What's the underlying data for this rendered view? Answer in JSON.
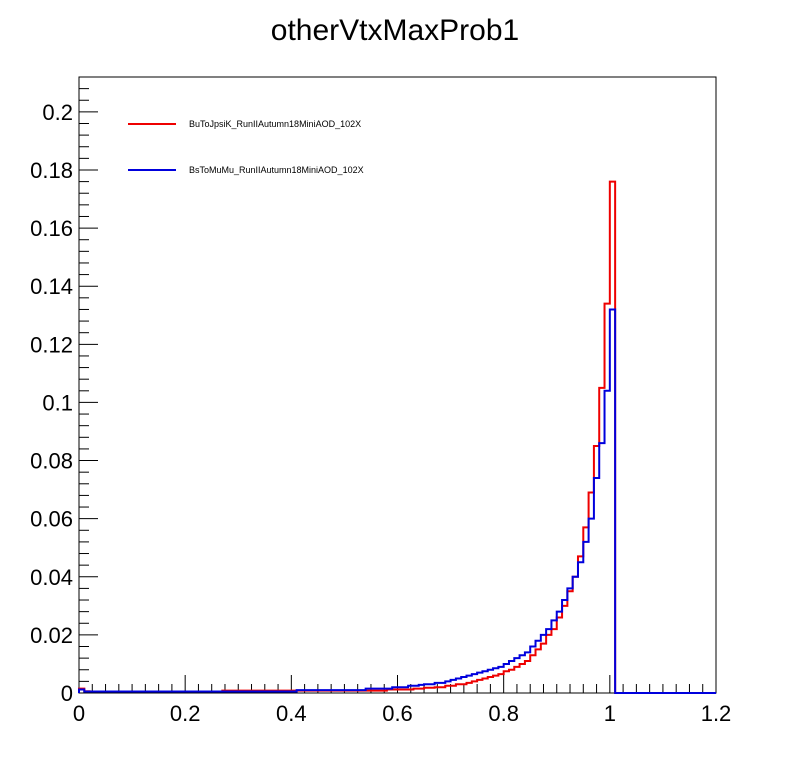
{
  "chart_data": {
    "type": "line",
    "title": "otherVtxMaxProb1",
    "xlabel": "",
    "ylabel": "",
    "xlim": [
      0,
      1.2
    ],
    "ylim": [
      0,
      0.212
    ],
    "x_ticks": [
      {
        "value": 0,
        "label": "0"
      },
      {
        "value": 0.2,
        "label": "0.2"
      },
      {
        "value": 0.4,
        "label": "0.4"
      },
      {
        "value": 0.6,
        "label": "0.6"
      },
      {
        "value": 0.8,
        "label": "0.8"
      },
      {
        "value": 1.0,
        "label": "1"
      },
      {
        "value": 1.2,
        "label": "1.2"
      }
    ],
    "y_ticks": [
      {
        "value": 0,
        "label": "0"
      },
      {
        "value": 0.02,
        "label": "0.02"
      },
      {
        "value": 0.04,
        "label": "0.04"
      },
      {
        "value": 0.06,
        "label": "0.06"
      },
      {
        "value": 0.08,
        "label": "0.08"
      },
      {
        "value": 0.1,
        "label": "0.1"
      },
      {
        "value": 0.12,
        "label": "0.12"
      },
      {
        "value": 0.14,
        "label": "0.14"
      },
      {
        "value": 0.16,
        "label": "0.16"
      },
      {
        "value": 0.18,
        "label": "0.18"
      },
      {
        "value": 0.2,
        "label": "0.2"
      }
    ],
    "grid": false,
    "legend_position": "top-left",
    "bin_width": 0.01,
    "series": [
      {
        "name": "BuToJpsiK_RunIIAutumn18MiniAOD_102X",
        "color": "#ee0000",
        "bins": [
          [
            0.0,
            0.0015
          ],
          [
            0.01,
            0.0006
          ],
          [
            0.02,
            0.0005
          ],
          [
            0.03,
            0.0005
          ],
          [
            0.04,
            0.0005
          ],
          [
            0.05,
            0.0005
          ],
          [
            0.06,
            0.0005
          ],
          [
            0.07,
            0.0005
          ],
          [
            0.08,
            0.0005
          ],
          [
            0.09,
            0.0005
          ],
          [
            0.1,
            0.0005
          ],
          [
            0.11,
            0.0005
          ],
          [
            0.12,
            0.0005
          ],
          [
            0.13,
            0.0005
          ],
          [
            0.14,
            0.0005
          ],
          [
            0.15,
            0.0005
          ],
          [
            0.16,
            0.0005
          ],
          [
            0.17,
            0.0005
          ],
          [
            0.18,
            0.0005
          ],
          [
            0.19,
            0.0005
          ],
          [
            0.2,
            0.0005
          ],
          [
            0.21,
            0.0005
          ],
          [
            0.22,
            0.0005
          ],
          [
            0.23,
            0.0005
          ],
          [
            0.24,
            0.0005
          ],
          [
            0.25,
            0.0005
          ],
          [
            0.26,
            0.0005
          ],
          [
            0.27,
            0.0008
          ],
          [
            0.28,
            0.0008
          ],
          [
            0.29,
            0.0008
          ],
          [
            0.3,
            0.0008
          ],
          [
            0.31,
            0.0008
          ],
          [
            0.32,
            0.0008
          ],
          [
            0.33,
            0.0008
          ],
          [
            0.34,
            0.0008
          ],
          [
            0.35,
            0.0008
          ],
          [
            0.36,
            0.0008
          ],
          [
            0.37,
            0.0008
          ],
          [
            0.38,
            0.0008
          ],
          [
            0.39,
            0.0008
          ],
          [
            0.4,
            0.0008
          ],
          [
            0.41,
            0.0008
          ],
          [
            0.42,
            0.0008
          ],
          [
            0.43,
            0.0008
          ],
          [
            0.44,
            0.0008
          ],
          [
            0.45,
            0.0008
          ],
          [
            0.46,
            0.0008
          ],
          [
            0.47,
            0.0008
          ],
          [
            0.48,
            0.0008
          ],
          [
            0.49,
            0.0008
          ],
          [
            0.5,
            0.0008
          ],
          [
            0.51,
            0.0008
          ],
          [
            0.52,
            0.0008
          ],
          [
            0.53,
            0.0008
          ],
          [
            0.54,
            0.0008
          ],
          [
            0.55,
            0.0008
          ],
          [
            0.56,
            0.0008
          ],
          [
            0.57,
            0.0008
          ],
          [
            0.58,
            0.0012
          ],
          [
            0.59,
            0.0012
          ],
          [
            0.6,
            0.0012
          ],
          [
            0.61,
            0.0012
          ],
          [
            0.62,
            0.0012
          ],
          [
            0.63,
            0.0015
          ],
          [
            0.64,
            0.0015
          ],
          [
            0.65,
            0.0018
          ],
          [
            0.66,
            0.0018
          ],
          [
            0.67,
            0.002
          ],
          [
            0.68,
            0.002
          ],
          [
            0.69,
            0.0025
          ],
          [
            0.7,
            0.0025
          ],
          [
            0.71,
            0.003
          ],
          [
            0.72,
            0.003
          ],
          [
            0.73,
            0.0035
          ],
          [
            0.74,
            0.004
          ],
          [
            0.75,
            0.0045
          ],
          [
            0.76,
            0.005
          ],
          [
            0.77,
            0.0055
          ],
          [
            0.78,
            0.006
          ],
          [
            0.79,
            0.0065
          ],
          [
            0.8,
            0.0075
          ],
          [
            0.81,
            0.008
          ],
          [
            0.82,
            0.009
          ],
          [
            0.83,
            0.01
          ],
          [
            0.84,
            0.011
          ],
          [
            0.85,
            0.013
          ],
          [
            0.86,
            0.015
          ],
          [
            0.87,
            0.017
          ],
          [
            0.88,
            0.02
          ],
          [
            0.89,
            0.022
          ],
          [
            0.9,
            0.026
          ],
          [
            0.91,
            0.03
          ],
          [
            0.92,
            0.035
          ],
          [
            0.93,
            0.04
          ],
          [
            0.94,
            0.047
          ],
          [
            0.95,
            0.057
          ],
          [
            0.96,
            0.069
          ],
          [
            0.97,
            0.085
          ],
          [
            0.98,
            0.105
          ],
          [
            0.99,
            0.134
          ],
          [
            1.0,
            0.176
          ],
          [
            1.01,
            0.0
          ],
          [
            1.02,
            0.0
          ],
          [
            1.03,
            0.0
          ],
          [
            1.04,
            0.0
          ],
          [
            1.05,
            0.0
          ],
          [
            1.06,
            0.0
          ],
          [
            1.07,
            0.0
          ],
          [
            1.08,
            0.0
          ],
          [
            1.09,
            0.0
          ],
          [
            1.1,
            0.0
          ],
          [
            1.11,
            0.0
          ],
          [
            1.12,
            0.0
          ],
          [
            1.13,
            0.0
          ],
          [
            1.14,
            0.0
          ],
          [
            1.15,
            0.0
          ],
          [
            1.16,
            0.0
          ],
          [
            1.17,
            0.0
          ],
          [
            1.18,
            0.0
          ],
          [
            1.19,
            0.0
          ]
        ]
      },
      {
        "name": "BsToMuMu_RunIIAutumn18MiniAOD_102X",
        "color": "#0000dd",
        "bins": [
          [
            0.0,
            0.0012
          ],
          [
            0.01,
            0.0005
          ],
          [
            0.02,
            0.0005
          ],
          [
            0.03,
            0.0005
          ],
          [
            0.04,
            0.0005
          ],
          [
            0.05,
            0.0005
          ],
          [
            0.06,
            0.0005
          ],
          [
            0.07,
            0.0005
          ],
          [
            0.08,
            0.0005
          ],
          [
            0.09,
            0.0005
          ],
          [
            0.1,
            0.0005
          ],
          [
            0.11,
            0.0005
          ],
          [
            0.12,
            0.0005
          ],
          [
            0.13,
            0.0005
          ],
          [
            0.14,
            0.0005
          ],
          [
            0.15,
            0.0005
          ],
          [
            0.16,
            0.0005
          ],
          [
            0.17,
            0.0005
          ],
          [
            0.18,
            0.0005
          ],
          [
            0.19,
            0.0005
          ],
          [
            0.2,
            0.0005
          ],
          [
            0.21,
            0.0005
          ],
          [
            0.22,
            0.0005
          ],
          [
            0.23,
            0.0005
          ],
          [
            0.24,
            0.0005
          ],
          [
            0.25,
            0.0005
          ],
          [
            0.26,
            0.0005
          ],
          [
            0.27,
            0.0005
          ],
          [
            0.28,
            0.0005
          ],
          [
            0.29,
            0.0005
          ],
          [
            0.3,
            0.0005
          ],
          [
            0.31,
            0.0005
          ],
          [
            0.32,
            0.0005
          ],
          [
            0.33,
            0.0005
          ],
          [
            0.34,
            0.0005
          ],
          [
            0.35,
            0.0005
          ],
          [
            0.36,
            0.0005
          ],
          [
            0.37,
            0.0005
          ],
          [
            0.38,
            0.0005
          ],
          [
            0.39,
            0.0005
          ],
          [
            0.4,
            0.0005
          ],
          [
            0.41,
            0.001
          ],
          [
            0.42,
            0.001
          ],
          [
            0.43,
            0.001
          ],
          [
            0.44,
            0.001
          ],
          [
            0.45,
            0.001
          ],
          [
            0.46,
            0.001
          ],
          [
            0.47,
            0.001
          ],
          [
            0.48,
            0.001
          ],
          [
            0.49,
            0.001
          ],
          [
            0.5,
            0.001
          ],
          [
            0.51,
            0.001
          ],
          [
            0.52,
            0.001
          ],
          [
            0.53,
            0.001
          ],
          [
            0.54,
            0.0015
          ],
          [
            0.55,
            0.0015
          ],
          [
            0.56,
            0.0015
          ],
          [
            0.57,
            0.0015
          ],
          [
            0.58,
            0.0015
          ],
          [
            0.59,
            0.002
          ],
          [
            0.6,
            0.002
          ],
          [
            0.61,
            0.002
          ],
          [
            0.62,
            0.0025
          ],
          [
            0.63,
            0.0025
          ],
          [
            0.64,
            0.0028
          ],
          [
            0.65,
            0.003
          ],
          [
            0.66,
            0.003
          ],
          [
            0.67,
            0.0035
          ],
          [
            0.68,
            0.0035
          ],
          [
            0.69,
            0.004
          ],
          [
            0.7,
            0.0045
          ],
          [
            0.71,
            0.005
          ],
          [
            0.72,
            0.0055
          ],
          [
            0.73,
            0.006
          ],
          [
            0.74,
            0.0065
          ],
          [
            0.75,
            0.007
          ],
          [
            0.76,
            0.0075
          ],
          [
            0.77,
            0.008
          ],
          [
            0.78,
            0.0085
          ],
          [
            0.79,
            0.009
          ],
          [
            0.8,
            0.01
          ],
          [
            0.81,
            0.011
          ],
          [
            0.82,
            0.012
          ],
          [
            0.83,
            0.013
          ],
          [
            0.84,
            0.014
          ],
          [
            0.85,
            0.016
          ],
          [
            0.86,
            0.018
          ],
          [
            0.87,
            0.02
          ],
          [
            0.88,
            0.022
          ],
          [
            0.89,
            0.025
          ],
          [
            0.9,
            0.028
          ],
          [
            0.91,
            0.032
          ],
          [
            0.92,
            0.036
          ],
          [
            0.93,
            0.04
          ],
          [
            0.94,
            0.045
          ],
          [
            0.95,
            0.052
          ],
          [
            0.96,
            0.06
          ],
          [
            0.97,
            0.074
          ],
          [
            0.98,
            0.086
          ],
          [
            0.99,
            0.104
          ],
          [
            1.0,
            0.132
          ],
          [
            1.01,
            0.0
          ],
          [
            1.02,
            0.0
          ],
          [
            1.03,
            0.0
          ],
          [
            1.04,
            0.0
          ],
          [
            1.05,
            0.0
          ],
          [
            1.06,
            0.0
          ],
          [
            1.07,
            0.0
          ],
          [
            1.08,
            0.0
          ],
          [
            1.09,
            0.0
          ],
          [
            1.1,
            0.0
          ],
          [
            1.11,
            0.0
          ],
          [
            1.12,
            0.0
          ],
          [
            1.13,
            0.0
          ],
          [
            1.14,
            0.0
          ],
          [
            1.15,
            0.0
          ],
          [
            1.16,
            0.0
          ],
          [
            1.17,
            0.0
          ],
          [
            1.18,
            0.0
          ],
          [
            1.19,
            0.0
          ]
        ]
      }
    ]
  }
}
